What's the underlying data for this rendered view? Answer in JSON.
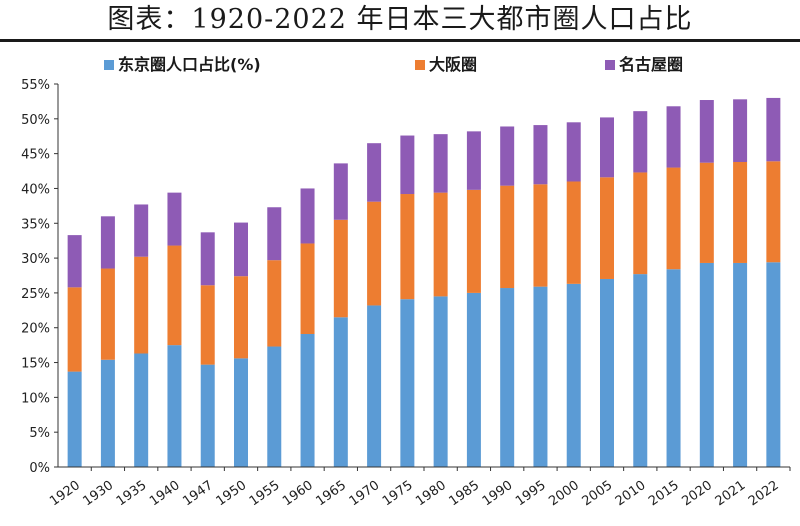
{
  "title": "图表：1920-2022 年日本三大都市圈人口占比",
  "chart_data": {
    "type": "bar",
    "stacked": true,
    "categories": [
      "1920",
      "1930",
      "1935",
      "1940",
      "1947",
      "1950",
      "1955",
      "1960",
      "1965",
      "1970",
      "1975",
      "1980",
      "1985",
      "1990",
      "1995",
      "2000",
      "2005",
      "2010",
      "2015",
      "2020",
      "2021",
      "2022"
    ],
    "series": [
      {
        "name": "东京圈人口占比(%)",
        "color": "#5b9bd5",
        "values": [
          13.7,
          15.4,
          16.3,
          17.5,
          14.7,
          15.6,
          17.3,
          19.1,
          21.5,
          23.2,
          24.1,
          24.5,
          25.0,
          25.7,
          25.9,
          26.3,
          27.0,
          27.7,
          28.4,
          29.3,
          29.3,
          29.4
        ]
      },
      {
        "name": "大阪圈",
        "color": "#ed7d31",
        "values": [
          12.1,
          13.1,
          13.9,
          14.3,
          11.4,
          11.8,
          12.4,
          13.0,
          14.0,
          14.9,
          15.1,
          14.9,
          14.8,
          14.7,
          14.7,
          14.7,
          14.6,
          14.6,
          14.6,
          14.4,
          14.5,
          14.5
        ]
      },
      {
        "name": "名古屋圈",
        "color": "#8e5bb5",
        "values": [
          7.5,
          7.5,
          7.5,
          7.6,
          7.6,
          7.7,
          7.6,
          7.9,
          8.1,
          8.4,
          8.4,
          8.4,
          8.4,
          8.5,
          8.5,
          8.5,
          8.6,
          8.8,
          8.8,
          9.0,
          9.0,
          9.1
        ]
      }
    ],
    "y_ticks": [
      "0%",
      "5%",
      "10%",
      "15%",
      "20%",
      "25%",
      "30%",
      "35%",
      "40%",
      "45%",
      "50%",
      "55%"
    ],
    "ylim": [
      0,
      55
    ],
    "grid": false,
    "legend_position": "top"
  }
}
